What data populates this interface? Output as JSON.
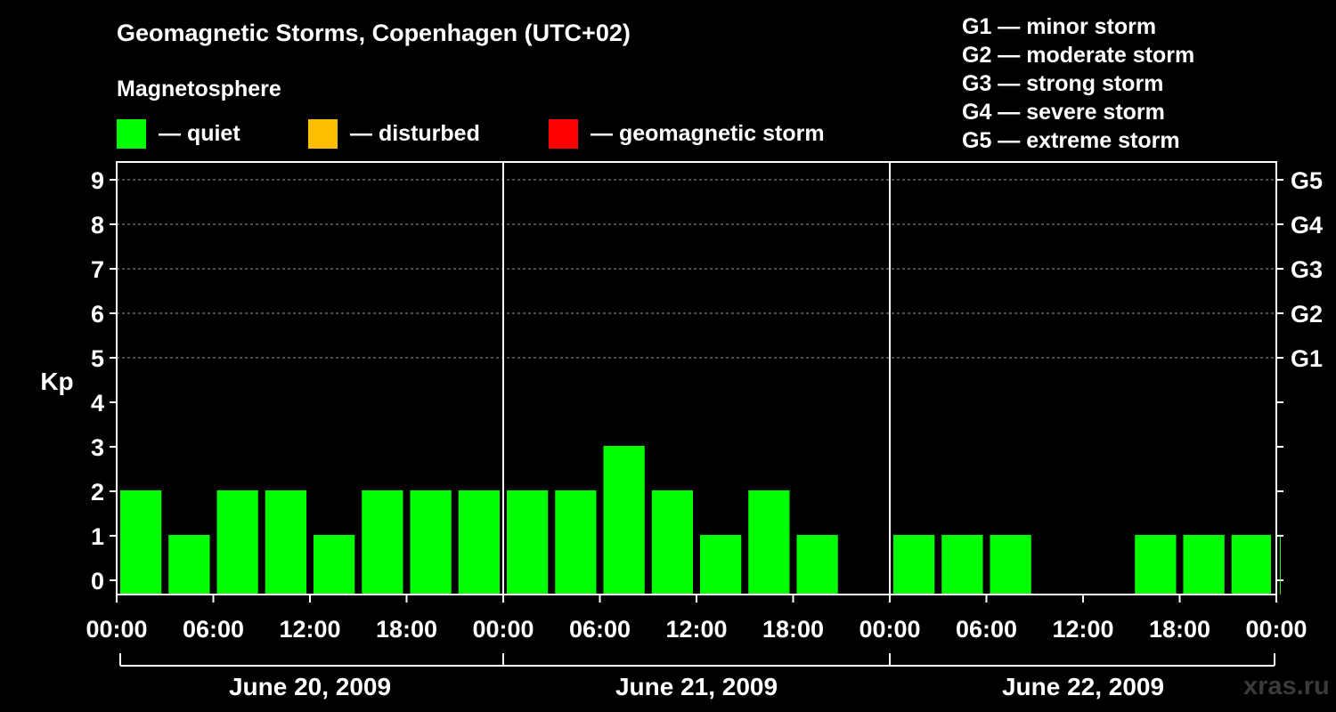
{
  "title": "Geomagnetic Storms, Copenhagen (UTC+02)",
  "subtitle": "Magnetosphere",
  "legend": [
    {
      "label": "— quiet",
      "color": "#00ff00"
    },
    {
      "label": "— disturbed",
      "color": "#ffbf00"
    },
    {
      "label": "— geomagnetic storm",
      "color": "#ff0000"
    }
  ],
  "storm_scale": [
    "G1 — minor storm",
    "G2 — moderate storm",
    "G3 — strong storm",
    "G4 — severe storm",
    "G5 — extreme storm"
  ],
  "watermark": "xras.ru",
  "chart_data": {
    "type": "bar",
    "ylabel": "Kp",
    "ylim": [
      0,
      9
    ],
    "yticks": [
      "0",
      "1",
      "2",
      "3",
      "4",
      "5",
      "6",
      "7",
      "8",
      "9"
    ],
    "right_ticks": [
      {
        "kp": 5,
        "label": "G1"
      },
      {
        "kp": 6,
        "label": "G2"
      },
      {
        "kp": 7,
        "label": "G3"
      },
      {
        "kp": 8,
        "label": "G4"
      },
      {
        "kp": 9,
        "label": "G5"
      }
    ],
    "xticks": [
      "00:00",
      "06:00",
      "12:00",
      "18:00",
      "00:00",
      "06:00",
      "12:00",
      "18:00",
      "00:00",
      "06:00",
      "12:00",
      "18:00",
      "00:00"
    ],
    "days": [
      "June 20, 2009",
      "June 21, 2009",
      "June 22, 2009"
    ],
    "grid": "dashed horizontal at Kp 5–9",
    "bar_color": "#00ff00",
    "series": [
      {
        "values": [
          {
            "start": "2009-06-20 00:00",
            "end": "2009-06-20 03:00",
            "kp": 2
          },
          {
            "start": "2009-06-20 03:00",
            "end": "2009-06-20 06:00",
            "kp": 1
          },
          {
            "start": "2009-06-20 06:00",
            "end": "2009-06-20 09:00",
            "kp": 2
          },
          {
            "start": "2009-06-20 09:00",
            "end": "2009-06-20 12:00",
            "kp": 2
          },
          {
            "start": "2009-06-20 12:00",
            "end": "2009-06-20 15:00",
            "kp": 1
          },
          {
            "start": "2009-06-20 15:00",
            "end": "2009-06-20 18:00",
            "kp": 2
          },
          {
            "start": "2009-06-20 18:00",
            "end": "2009-06-20 21:00",
            "kp": 2
          },
          {
            "start": "2009-06-20 21:00",
            "end": "2009-06-21 00:00",
            "kp": 2
          },
          {
            "start": "2009-06-21 00:00",
            "end": "2009-06-21 03:00",
            "kp": 2
          },
          {
            "start": "2009-06-21 03:00",
            "end": "2009-06-21 06:00",
            "kp": 2
          },
          {
            "start": "2009-06-21 06:00",
            "end": "2009-06-21 09:00",
            "kp": 3
          },
          {
            "start": "2009-06-21 09:00",
            "end": "2009-06-21 12:00",
            "kp": 2
          },
          {
            "start": "2009-06-21 12:00",
            "end": "2009-06-21 15:00",
            "kp": 1
          },
          {
            "start": "2009-06-21 15:00",
            "end": "2009-06-21 18:00",
            "kp": 2
          },
          {
            "start": "2009-06-21 18:00",
            "end": "2009-06-21 21:00",
            "kp": 1
          },
          {
            "start": "2009-06-21 21:00",
            "end": "2009-06-22 00:00",
            "kp": 0
          },
          {
            "start": "2009-06-22 00:00",
            "end": "2009-06-22 03:00",
            "kp": 1
          },
          {
            "start": "2009-06-22 03:00",
            "end": "2009-06-22 06:00",
            "kp": 1
          },
          {
            "start": "2009-06-22 06:00",
            "end": "2009-06-22 09:00",
            "kp": 1
          },
          {
            "start": "2009-06-22 09:00",
            "end": "2009-06-22 12:00",
            "kp": 0
          },
          {
            "start": "2009-06-22 12:00",
            "end": "2009-06-22 15:00",
            "kp": 0
          },
          {
            "start": "2009-06-22 15:00",
            "end": "2009-06-22 18:00",
            "kp": 1
          },
          {
            "start": "2009-06-22 18:00",
            "end": "2009-06-22 21:00",
            "kp": 1
          },
          {
            "start": "2009-06-22 21:00",
            "end": "2009-06-23 00:00",
            "kp": 1
          },
          {
            "start": "2009-06-23 00:00",
            "end": "2009-06-23 00:45",
            "kp": 1
          }
        ]
      }
    ]
  }
}
